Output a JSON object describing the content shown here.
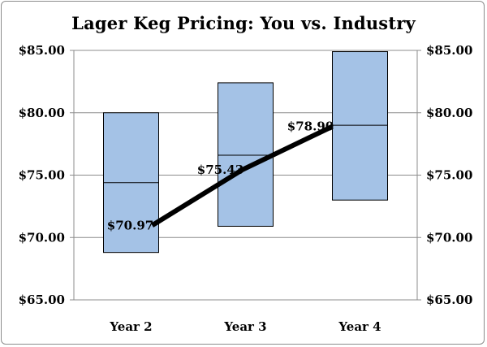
{
  "chart_data": {
    "type": "box",
    "title": "Lager Keg Pricing: You vs. Industry",
    "xlabel": "",
    "ylabel": "",
    "categories": [
      "Year 2",
      "Year 3",
      "Year 4"
    ],
    "ylim": [
      65,
      85
    ],
    "y_ticks": [
      65,
      70,
      75,
      80,
      85
    ],
    "y_tick_labels": [
      "$65.00",
      "$70.00",
      "$75.00",
      "$80.00",
      "$85.00"
    ],
    "secondary_axis_mirrors_primary": true,
    "grid": true,
    "legend": "none",
    "series": [
      {
        "kind": "range_box",
        "low": [
          68.8,
          70.9,
          73.0
        ],
        "mid": [
          74.4,
          76.6,
          79.0
        ],
        "high": [
          80.0,
          82.4,
          84.9
        ],
        "color": "#a4c2e6"
      },
      {
        "kind": "line",
        "values": [
          70.97,
          75.43,
          78.9
        ],
        "labels": [
          "$70.97",
          "$75.43",
          "$78.90"
        ],
        "color": "#000000"
      }
    ]
  }
}
